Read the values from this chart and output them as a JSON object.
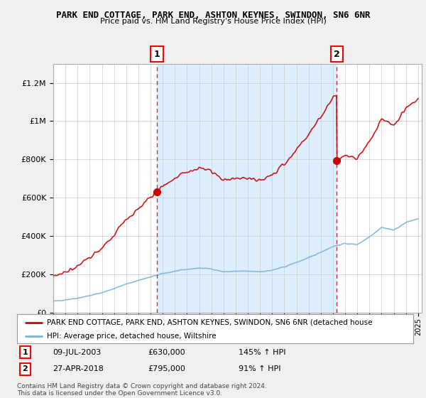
{
  "title": "PARK END COTTAGE, PARK END, ASHTON KEYNES, SWINDON, SN6 6NR",
  "subtitle": "Price paid vs. HM Land Registry's House Price Index (HPI)",
  "ylim": [
    0,
    1300000
  ],
  "yticks": [
    0,
    200000,
    400000,
    600000,
    800000,
    1000000,
    1200000
  ],
  "ytick_labels": [
    "£0",
    "£200K",
    "£400K",
    "£600K",
    "£800K",
    "£1M",
    "£1.2M"
  ],
  "sale1_date": 2003.52,
  "sale1_price": 630000,
  "sale2_date": 2018.32,
  "sale2_price": 795000,
  "hpi_color": "#7fb3d3",
  "price_color": "#cc0000",
  "shade_color": "#ddeeff",
  "background_color": "#f0f0f0",
  "plot_bg_color": "#ffffff",
  "legend_house_label": "PARK END COTTAGE, PARK END, ASHTON KEYNES, SWINDON, SN6 6NR (detached house",
  "legend_hpi_label": "HPI: Average price, detached house, Wiltshire",
  "footnote": "Contains HM Land Registry data © Crown copyright and database right 2024.\nThis data is licensed under the Open Government Licence v3.0.",
  "hpi_keypoints_x": [
    1995,
    1996,
    1997,
    1998,
    1999,
    2000,
    2001,
    2002,
    2003,
    2004,
    2005,
    2006,
    2007,
    2008,
    2009,
    2010,
    2011,
    2012,
    2013,
    2014,
    2015,
    2016,
    2017,
    2018,
    2019,
    2020,
    2021,
    2022,
    2023,
    2024,
    2025
  ],
  "hpi_keypoints_y": [
    58000,
    66000,
    75000,
    88000,
    103000,
    125000,
    148000,
    168000,
    185000,
    203000,
    215000,
    225000,
    232000,
    228000,
    212000,
    215000,
    215000,
    213000,
    220000,
    238000,
    262000,
    285000,
    315000,
    345000,
    360000,
    355000,
    395000,
    445000,
    430000,
    470000,
    490000
  ]
}
